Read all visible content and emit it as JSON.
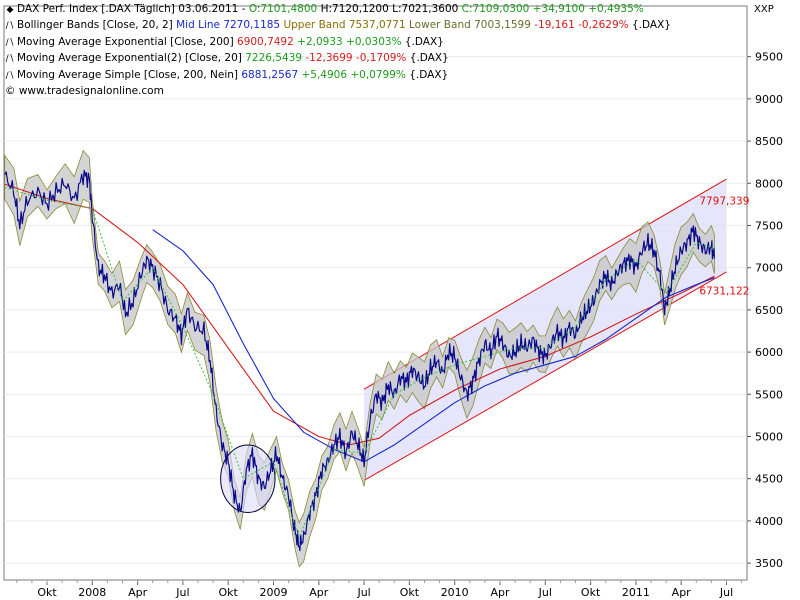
{
  "chart_data": {
    "type": "line",
    "yaxis_label": "XXP",
    "ylim": [
      3300,
      10100
    ],
    "yticks": [
      3500,
      4000,
      4500,
      5000,
      5500,
      6000,
      6500,
      7000,
      7500,
      8000,
      8500,
      9000,
      9500
    ],
    "xticks": [
      {
        "label": "Okt",
        "t": 0.0
      },
      {
        "label": "2008",
        "t": 3.0
      },
      {
        "label": "Apr",
        "t": 6.0
      },
      {
        "label": "Jul",
        "t": 9.0
      },
      {
        "label": "Okt",
        "t": 12.0
      },
      {
        "label": "2009",
        "t": 15.0
      },
      {
        "label": "Apr",
        "t": 18.0
      },
      {
        "label": "Jul",
        "t": 21.0
      },
      {
        "label": "Okt",
        "t": 24.0
      },
      {
        "label": "2010",
        "t": 27.0
      },
      {
        "label": "Apr",
        "t": 30.0
      },
      {
        "label": "Jul",
        "t": 33.0
      },
      {
        "label": "Okt",
        "t": 36.0
      },
      {
        "label": "2011",
        "t": 39.0
      },
      {
        "label": "Apr",
        "t": 42.0
      },
      {
        "label": "Jul",
        "t": 45.0
      }
    ],
    "series": [
      {
        "name": "DAX Perf. Index",
        "color": "#0a0a8c",
        "points": [
          [
            -2.8,
            8100
          ],
          [
            -2.2,
            7900
          ],
          [
            -1.8,
            7500
          ],
          [
            -1.3,
            7800
          ],
          [
            -0.6,
            7900
          ],
          [
            0.0,
            7750
          ],
          [
            0.6,
            7900
          ],
          [
            1.2,
            8000
          ],
          [
            1.8,
            7800
          ],
          [
            2.4,
            8100
          ],
          [
            2.8,
            8050
          ],
          [
            3.0,
            7600
          ],
          [
            3.4,
            7000
          ],
          [
            3.8,
            6900
          ],
          [
            4.3,
            6700
          ],
          [
            4.8,
            6800
          ],
          [
            5.2,
            6450
          ],
          [
            5.7,
            6600
          ],
          [
            6.2,
            6900
          ],
          [
            6.6,
            7100
          ],
          [
            7.0,
            7000
          ],
          [
            7.5,
            6800
          ],
          [
            8.0,
            6500
          ],
          [
            8.5,
            6400
          ],
          [
            8.9,
            6200
          ],
          [
            9.3,
            6500
          ],
          [
            9.8,
            6300
          ],
          [
            10.4,
            6250
          ],
          [
            10.8,
            5900
          ],
          [
            11.2,
            5300
          ],
          [
            11.6,
            4900
          ],
          [
            12.0,
            4700
          ],
          [
            12.4,
            4300
          ],
          [
            12.8,
            4100
          ],
          [
            13.2,
            4600
          ],
          [
            13.6,
            4800
          ],
          [
            14.0,
            4500
          ],
          [
            14.4,
            4400
          ],
          [
            14.8,
            4600
          ],
          [
            15.2,
            4800
          ],
          [
            15.6,
            4500
          ],
          [
            16.0,
            4300
          ],
          [
            16.4,
            3900
          ],
          [
            16.7,
            3700
          ],
          [
            17.0,
            3800
          ],
          [
            17.4,
            4100
          ],
          [
            17.8,
            4300
          ],
          [
            18.2,
            4600
          ],
          [
            18.6,
            4700
          ],
          [
            19.0,
            4900
          ],
          [
            19.4,
            5000
          ],
          [
            19.8,
            4800
          ],
          [
            20.2,
            5050
          ],
          [
            20.6,
            4900
          ],
          [
            21.0,
            4700
          ],
          [
            21.4,
            5200
          ],
          [
            21.8,
            5500
          ],
          [
            22.2,
            5400
          ],
          [
            22.6,
            5600
          ],
          [
            23.0,
            5500
          ],
          [
            23.4,
            5700
          ],
          [
            23.8,
            5650
          ],
          [
            24.2,
            5800
          ],
          [
            24.6,
            5700
          ],
          [
            25.0,
            5600
          ],
          [
            25.4,
            5800
          ],
          [
            25.8,
            5900
          ],
          [
            26.2,
            5750
          ],
          [
            26.6,
            6000
          ],
          [
            27.0,
            5950
          ],
          [
            27.4,
            5700
          ],
          [
            27.8,
            5500
          ],
          [
            28.2,
            5650
          ],
          [
            28.6,
            5900
          ],
          [
            29.0,
            6100
          ],
          [
            29.4,
            6000
          ],
          [
            29.8,
            6200
          ],
          [
            30.2,
            6100
          ],
          [
            30.6,
            5950
          ],
          [
            31.0,
            6000
          ],
          [
            31.4,
            6100
          ],
          [
            31.8,
            6050
          ],
          [
            32.2,
            6150
          ],
          [
            32.6,
            6000
          ],
          [
            33.0,
            5950
          ],
          [
            33.4,
            6100
          ],
          [
            33.8,
            6250
          ],
          [
            34.2,
            6150
          ],
          [
            34.6,
            6300
          ],
          [
            35.0,
            6200
          ],
          [
            35.4,
            6400
          ],
          [
            35.8,
            6500
          ],
          [
            36.2,
            6600
          ],
          [
            36.6,
            6800
          ],
          [
            37.0,
            6900
          ],
          [
            37.4,
            6800
          ],
          [
            37.8,
            6950
          ],
          [
            38.2,
            7050
          ],
          [
            38.6,
            7100
          ],
          [
            39.0,
            7000
          ],
          [
            39.4,
            7200
          ],
          [
            39.8,
            7300
          ],
          [
            40.2,
            7200
          ],
          [
            40.6,
            6900
          ],
          [
            40.9,
            6500
          ],
          [
            41.2,
            6700
          ],
          [
            41.6,
            7000
          ],
          [
            42.0,
            7200
          ],
          [
            42.4,
            7300
          ],
          [
            42.8,
            7450
          ],
          [
            43.2,
            7300
          ],
          [
            43.6,
            7200
          ],
          [
            44.0,
            7250
          ],
          [
            44.2,
            7109
          ]
        ]
      },
      {
        "name": "Moving Average Exponential [Close, 200]",
        "color": "#d21c1c",
        "points": [
          [
            -2.8,
            7990
          ],
          [
            0.0,
            7820
          ],
          [
            3.0,
            7700
          ],
          [
            6.0,
            7300
          ],
          [
            9.0,
            6800
          ],
          [
            12.0,
            6050
          ],
          [
            15.0,
            5300
          ],
          [
            18.0,
            5000
          ],
          [
            20.0,
            4900
          ],
          [
            22.0,
            4980
          ],
          [
            24.0,
            5250
          ],
          [
            27.0,
            5550
          ],
          [
            30.0,
            5800
          ],
          [
            33.0,
            5950
          ],
          [
            36.0,
            6180
          ],
          [
            39.0,
            6450
          ],
          [
            42.0,
            6700
          ],
          [
            44.2,
            6900
          ]
        ]
      },
      {
        "name": "Moving Average Simple [Close, 200, Nein]",
        "color": "#1628c8",
        "points": [
          [
            7.0,
            7450
          ],
          [
            9.0,
            7200
          ],
          [
            11.0,
            6800
          ],
          [
            13.0,
            6100
          ],
          [
            15.0,
            5450
          ],
          [
            17.0,
            5050
          ],
          [
            19.0,
            4850
          ],
          [
            21.0,
            4700
          ],
          [
            23.0,
            4900
          ],
          [
            25.0,
            5150
          ],
          [
            27.0,
            5400
          ],
          [
            29.0,
            5600
          ],
          [
            31.0,
            5750
          ],
          [
            33.0,
            5850
          ],
          [
            35.0,
            5950
          ],
          [
            37.0,
            6150
          ],
          [
            39.0,
            6400
          ],
          [
            41.0,
            6650
          ],
          [
            43.0,
            6800
          ],
          [
            44.2,
            6881
          ]
        ]
      },
      {
        "name": "Moving Average Exponential(2) [Close, 20]",
        "color": "#38c038",
        "points": [
          [
            -2.8,
            7950
          ],
          [
            0.0,
            7800
          ],
          [
            3.0,
            7700
          ],
          [
            5.0,
            6600
          ],
          [
            7.0,
            7000
          ],
          [
            9.0,
            6300
          ],
          [
            11.0,
            5500
          ],
          [
            13.0,
            4500
          ],
          [
            15.0,
            4700
          ],
          [
            16.7,
            3800
          ],
          [
            19.0,
            4850
          ],
          [
            21.0,
            4800
          ],
          [
            23.0,
            5500
          ],
          [
            25.0,
            5700
          ],
          [
            27.0,
            5850
          ],
          [
            29.0,
            5950
          ],
          [
            31.0,
            6050
          ],
          [
            33.0,
            6050
          ],
          [
            35.0,
            6300
          ],
          [
            37.0,
            6850
          ],
          [
            39.0,
            7100
          ],
          [
            41.0,
            6700
          ],
          [
            43.0,
            7300
          ],
          [
            44.2,
            7226
          ]
        ]
      }
    ],
    "bollinger_band": {
      "name": "Bollinger Bands [Close, 20, 2]",
      "fill": "#c6c6c6",
      "edge": "#8a8a3a"
    },
    "channel": {
      "upper_label": "7797,339",
      "lower_label": "6731,122",
      "upper": [
        [
          21.0,
          5560
        ],
        [
          45.0,
          8050
        ]
      ],
      "lower": [
        [
          21.0,
          4480
        ],
        [
          45.0,
          6950
        ]
      ]
    },
    "circle_annotation": {
      "center": [
        13.3,
        4500
      ],
      "rx_months": 1.8,
      "ry_value": 400
    }
  },
  "legend": {
    "row1": {
      "name": "DAX Perf. Index [.DAX  Täglich] 03.06.2011",
      "open": "O:7101,4800",
      "high": "H:7120,1200",
      "low": "L:7021,3600",
      "close": "C:7109,0300",
      "change": "+34,9100",
      "pct": "+0,4935%"
    },
    "row2": {
      "name": "Bollinger Bands [Close, 20, 2]",
      "mid": "Mid Line 7270,1185",
      "upper": "Upper Band 7537,0771",
      "lower": "Lower Band 7003,1599",
      "change": "-19,161",
      "pct": "-0,2629%",
      "sym": "{.DAX}"
    },
    "row3": {
      "name": "Moving Average Exponential [Close, 200]",
      "value": "6900,7492",
      "change": "+2,0933",
      "pct": "+0,0303%",
      "sym": "{.DAX}"
    },
    "row4": {
      "name": "Moving Average Exponential(2) [Close, 20]",
      "value": "7226,5439",
      "change": "-12,3699",
      "pct": "-0,1709%",
      "sym": "{.DAX}"
    },
    "row5": {
      "name": "Moving Average Simple [Close, 200, Nein]",
      "value": "6881,2567",
      "change": "+5,4906",
      "pct": "+0,0799%",
      "sym": "{.DAX}"
    },
    "row6": {
      "copyright": "© www.tradesignalonline.com"
    }
  },
  "colors": {
    "price": "#0a0a8c",
    "ema200": "#d21c1c",
    "sma200": "#1628c8",
    "ema20": "#38c038",
    "band_fill": "#c6c6c6",
    "channel": "#e01010",
    "channel_fill": "#dcdcfa"
  }
}
